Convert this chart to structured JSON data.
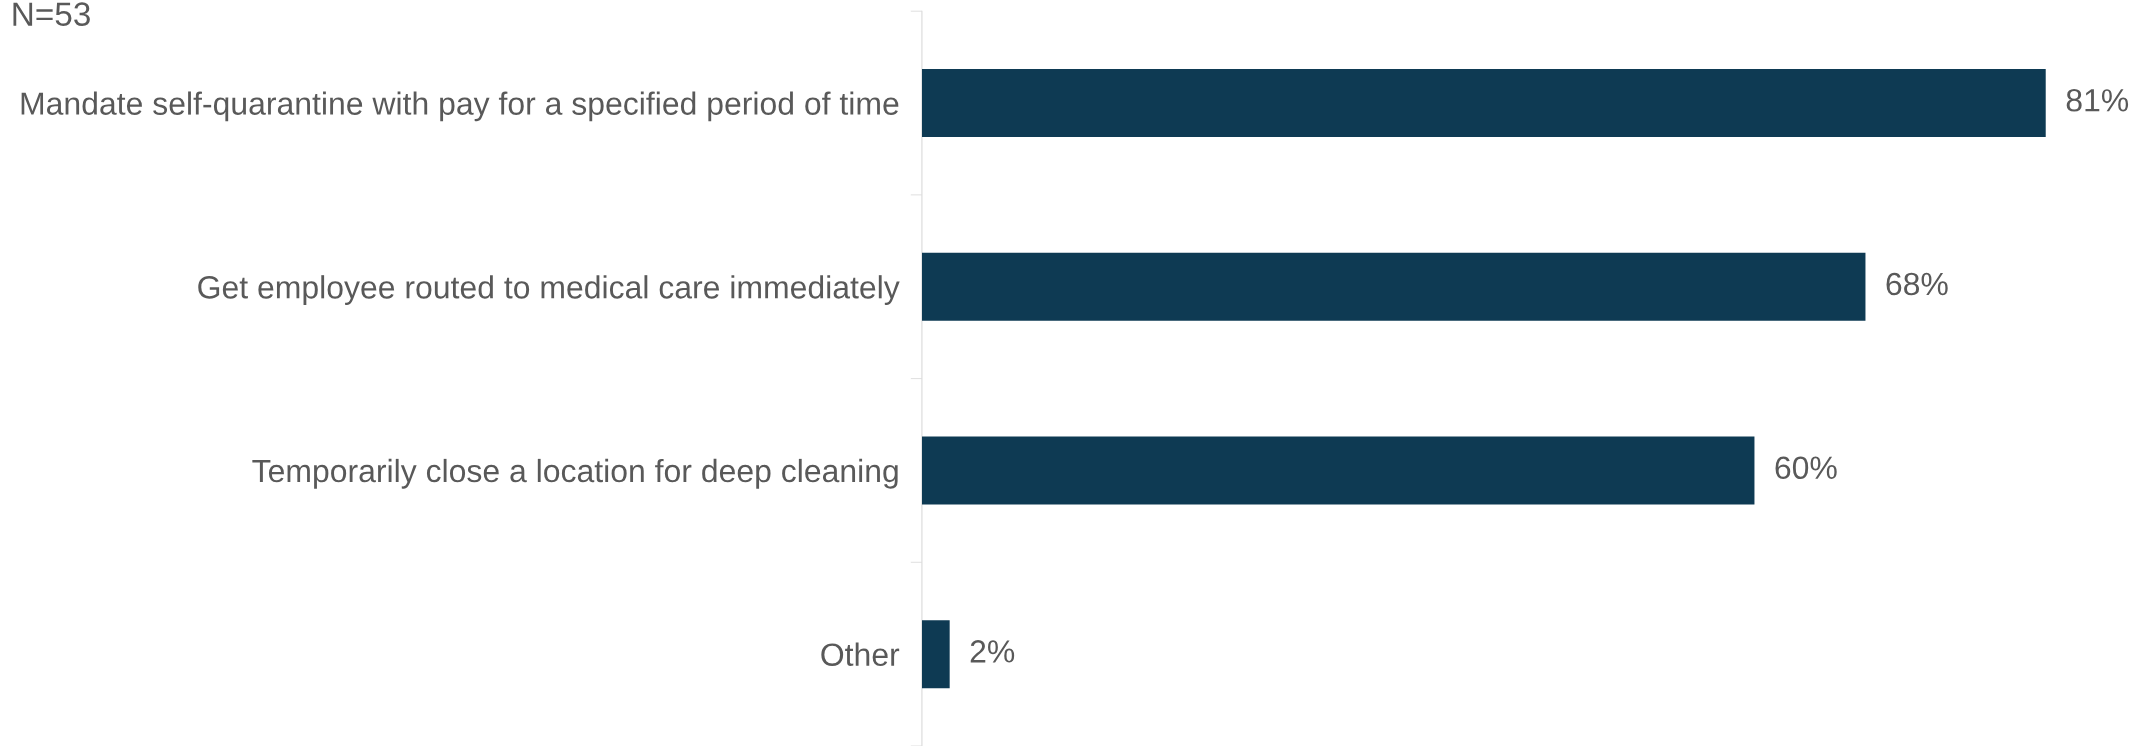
{
  "chart_data": {
    "type": "bar",
    "orientation": "horizontal",
    "categories": [
      "Mandate self-quarantine with pay for a specified period of time",
      "Get employee routed to medical care immediately",
      "Temporarily close a location for deep cleaning",
      "Other"
    ],
    "values": [
      81,
      68,
      60,
      2
    ],
    "value_labels": [
      "81%",
      "68%",
      "60%",
      "2%"
    ],
    "color": "#0e3a53",
    "annotations": [
      "N=53"
    ],
    "grid": false,
    "legend": false
  }
}
